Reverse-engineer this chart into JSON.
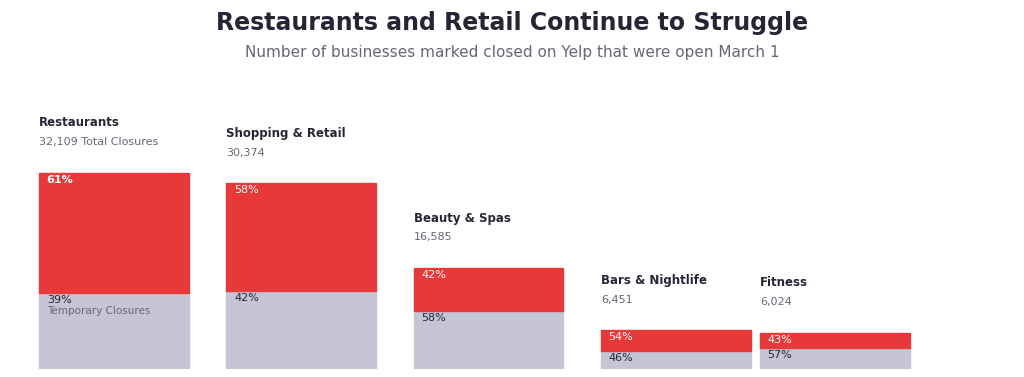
{
  "title": "Restaurants and Retail Continue to Struggle",
  "subtitle": "Number of businesses marked closed on Yelp that were open March 1",
  "title_fontsize": 17,
  "subtitle_fontsize": 11,
  "categories": [
    "Restaurants",
    "Shopping & Retail",
    "Beauty & Spas",
    "Bars & Nightlife",
    "Fitness"
  ],
  "totals": [
    "32,109 Total Closures",
    "30,374",
    "16,585",
    "6,451",
    "6,024"
  ],
  "total_values": [
    32109,
    30374,
    16585,
    6451,
    6024
  ],
  "permanent_pct": [
    61,
    58,
    42,
    54,
    43
  ],
  "temporary_pct": [
    39,
    42,
    58,
    46,
    57
  ],
  "bar_color_permanent": "#e8393a",
  "bar_color_temporary": "#c5c5d5",
  "background_color": "#ffffff",
  "text_color_dark": "#252535",
  "text_color_red": "#e8393a",
  "text_color_gray": "#666677"
}
